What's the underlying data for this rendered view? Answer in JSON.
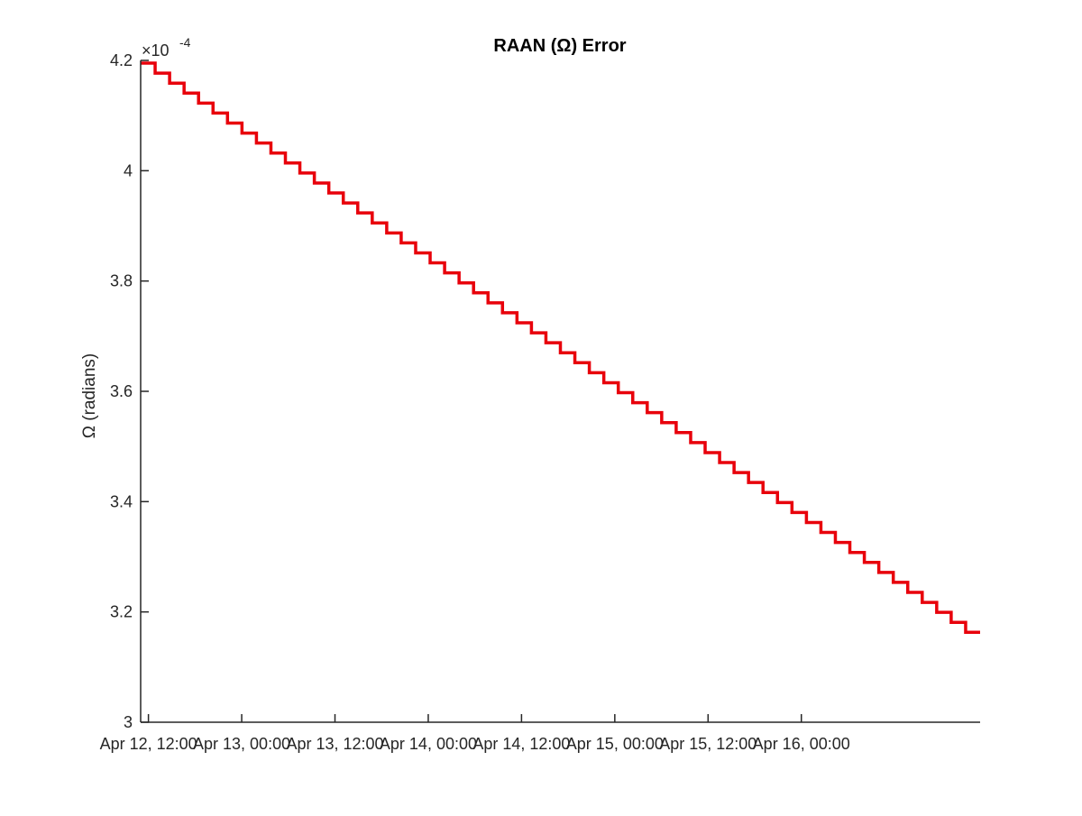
{
  "chart_data": {
    "type": "line",
    "title": "RAAN (Ω) Error",
    "ylabel": "Ω (radians)",
    "xlabel": "",
    "y_exponent_label": "×10",
    "y_exponent_power": "-4",
    "x_axis_type": "datetime",
    "xlim": [
      "2024-04-12T11:00",
      "2024-04-16T23:00"
    ],
    "ylim": [
      3.0,
      4.2
    ],
    "y_ticks": [
      3.0,
      3.2,
      3.4,
      3.6,
      3.8,
      4.0,
      4.2
    ],
    "y_tick_labels": [
      "3",
      "3.2",
      "3.4",
      "3.6",
      "3.8",
      "4",
      "4.2"
    ],
    "x_ticks": [
      "2024-04-12T12:00",
      "2024-04-13T00:00",
      "2024-04-13T12:00",
      "2024-04-14T00:00",
      "2024-04-14T12:00",
      "2024-04-15T00:00",
      "2024-04-15T12:00",
      "2024-04-16T00:00"
    ],
    "x_tick_labels": [
      "Apr 12, 12:00",
      "Apr 13, 00:00",
      "Apr 13, 12:00",
      "Apr 14, 00:00",
      "Apr 14, 12:00",
      "Apr 15, 00:00",
      "Apr 15, 12:00",
      "Apr 16, 00:00"
    ],
    "grid": false,
    "series": [
      {
        "color": "#e8000b",
        "style": "staircase",
        "x": [
          "2024-04-12T11:00",
          "2024-04-16T23:00"
        ],
        "y": [
          4.195,
          3.163
        ],
        "num_steps": 58
      }
    ]
  }
}
